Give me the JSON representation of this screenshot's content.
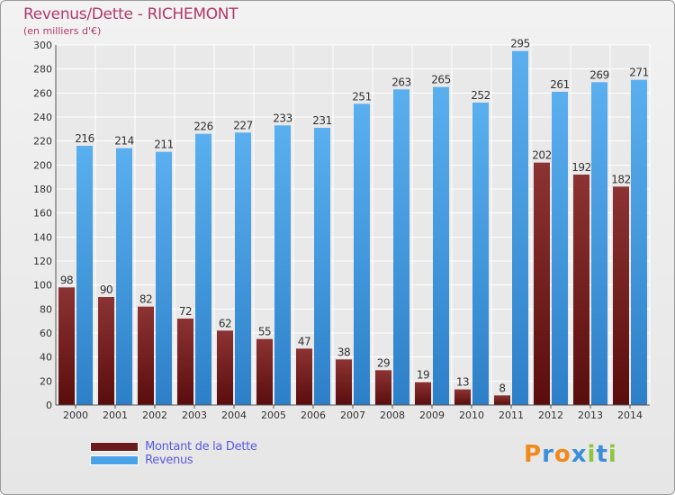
{
  "header": {
    "title": "Revenus/Dette - RICHEMONT",
    "subtitle": "(en milliers d'€)"
  },
  "legend": {
    "items": [
      {
        "label": "Montant de la Dette",
        "color": "#6b1d1d"
      },
      {
        "label": "Revenus",
        "color": "#4aa3e8"
      }
    ]
  },
  "logo": {
    "text": "Proxiti",
    "colors": [
      "#f08a1c",
      "#3a8fd8",
      "#f08a1c",
      "#3a8fd8",
      "#8cc63f",
      "#3a8fd8",
      "#8cc63f"
    ]
  },
  "chart_data": {
    "type": "bar",
    "categories": [
      "2000",
      "2001",
      "2002",
      "2003",
      "2004",
      "2005",
      "2006",
      "2007",
      "2008",
      "2009",
      "2010",
      "2011",
      "2012",
      "2013",
      "2014"
    ],
    "series": [
      {
        "name": "Montant de la Dette",
        "color_top": "#8c3333",
        "color_bottom": "#5a0d0d",
        "values": [
          98,
          90,
          82,
          72,
          62,
          55,
          47,
          38,
          29,
          19,
          13,
          8,
          202,
          192,
          182
        ]
      },
      {
        "name": "Revenus",
        "color_top": "#5aafef",
        "color_bottom": "#2d80c8",
        "values": [
          216,
          214,
          211,
          226,
          227,
          233,
          231,
          251,
          263,
          265,
          252,
          295,
          261,
          269,
          271
        ]
      }
    ],
    "ylim": [
      0,
      300
    ],
    "yticks": [
      0,
      20,
      40,
      60,
      80,
      100,
      120,
      140,
      160,
      180,
      200,
      220,
      240,
      260,
      280,
      300
    ],
    "grid": true,
    "legend_position": "bottom-left"
  }
}
